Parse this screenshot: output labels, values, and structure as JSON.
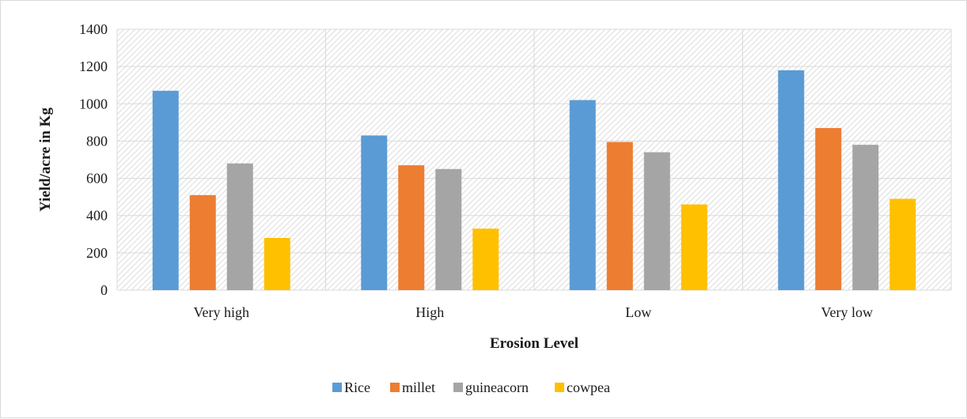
{
  "chart_data": {
    "type": "bar",
    "title": "",
    "xlabel": "Erosion Level",
    "ylabel": "Yield/acre in Kg",
    "categories": [
      "Very high",
      "High",
      "Low",
      "Very low"
    ],
    "ylim": [
      0,
      1400
    ],
    "yticks": [
      0,
      200,
      400,
      600,
      800,
      1000,
      1200,
      1400
    ],
    "grid": true,
    "legend_position": "bottom",
    "series": [
      {
        "name": "Rice",
        "color": "#5b9bd5",
        "values": [
          1070,
          830,
          1020,
          1180
        ]
      },
      {
        "name": "millet",
        "color": "#ed7d31",
        "values": [
          510,
          670,
          795,
          870
        ]
      },
      {
        "name": "guineacorn",
        "color": "#a5a5a5",
        "values": [
          680,
          650,
          740,
          780
        ]
      },
      {
        "name": "cowpea",
        "color": "#ffc000",
        "values": [
          280,
          330,
          460,
          490
        ]
      }
    ]
  }
}
